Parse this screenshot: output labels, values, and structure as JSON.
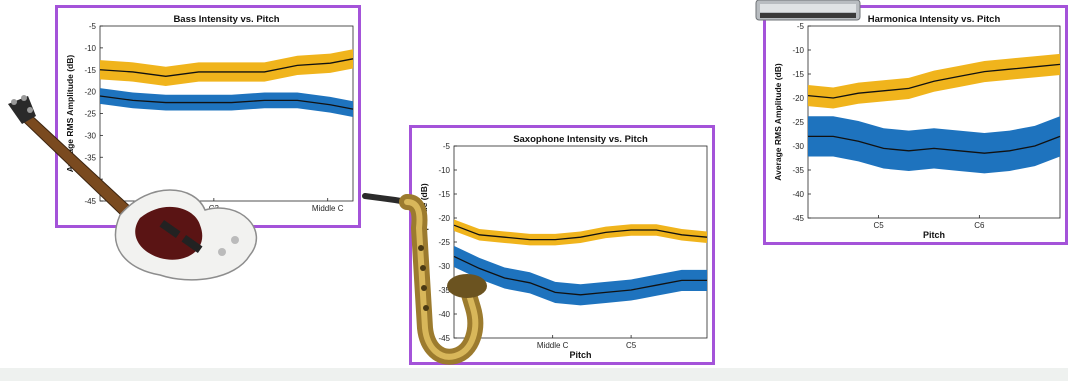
{
  "colors": {
    "frame": "#a453d9",
    "upper_band": "#f0b41c",
    "lower_band": "#1e73be",
    "mean_line": "#111111"
  },
  "chart_data": [
    {
      "id": "bass",
      "type": "area",
      "title": "Bass Intensity vs. Pitch",
      "xlabel": "",
      "ylabel": "Average RMS Amplitude (dB)",
      "ylim": [
        -45,
        -5
      ],
      "yticks": [
        -5,
        -10,
        -15,
        -20,
        -25,
        -30,
        -35,
        -40,
        -45
      ],
      "xlim": [
        0,
        10
      ],
      "xticks": [
        {
          "x": 4.5,
          "label": "C3"
        },
        {
          "x": 9,
          "label": "Middle C"
        }
      ],
      "x": [
        0,
        1.3,
        2.6,
        3.9,
        5.2,
        6.5,
        7.8,
        9.1,
        10
      ],
      "series": [
        {
          "color": "upper_band",
          "mean": [
            -15,
            -15.5,
            -16.5,
            -15.5,
            -15.5,
            -15.5,
            -14,
            -13.5,
            -12.5
          ],
          "spread": 2.2
        },
        {
          "color": "lower_band",
          "mean": [
            -21,
            -22,
            -22.5,
            -22.5,
            -22.5,
            -22,
            -22,
            -23,
            -24
          ],
          "spread": 1.8
        }
      ]
    },
    {
      "id": "sax",
      "type": "area",
      "title": "Saxophone Intensity vs. Pitch",
      "xlabel": "Pitch",
      "ylabel": "Average RMS Amplitude (dB)",
      "ylim": [
        -45,
        -5
      ],
      "yticks": [
        -5,
        -10,
        -15,
        -20,
        -25,
        -30,
        -35,
        -40,
        -45
      ],
      "xlim": [
        0,
        10
      ],
      "xticks": [
        {
          "x": 3.9,
          "label": "Middle C"
        },
        {
          "x": 7,
          "label": "C5"
        }
      ],
      "x": [
        0,
        1,
        2,
        3,
        4,
        5,
        6,
        7,
        8,
        9,
        10
      ],
      "series": [
        {
          "color": "upper_band",
          "mean": [
            -21.5,
            -23.5,
            -24,
            -24.5,
            -24.5,
            -24,
            -23,
            -22.5,
            -22.5,
            -23.5,
            -24
          ],
          "spread": 1.2
        },
        {
          "color": "lower_band",
          "mean": [
            -28,
            -30.5,
            -32.5,
            -33.5,
            -35.5,
            -36,
            -35.5,
            -35,
            -34,
            -33,
            -33
          ],
          "spread": 2.2
        }
      ]
    },
    {
      "id": "harmonica",
      "type": "area",
      "title": "Harmonica Intensity vs. Pitch",
      "xlabel": "Pitch",
      "ylabel": "Average RMS Amplitude (dB)",
      "ylim": [
        -45,
        -5
      ],
      "yticks": [
        -5,
        -10,
        -15,
        -20,
        -25,
        -30,
        -35,
        -40,
        -45
      ],
      "xlim": [
        0,
        10
      ],
      "xticks": [
        {
          "x": 2.8,
          "label": "C5"
        },
        {
          "x": 6.8,
          "label": "C6"
        }
      ],
      "x": [
        0,
        1,
        2,
        3,
        4,
        5,
        6,
        7,
        8,
        9,
        10
      ],
      "series": [
        {
          "color": "upper_band",
          "mean": [
            -19.5,
            -20,
            -19,
            -18.5,
            -18,
            -16.5,
            -15.5,
            -14.5,
            -14,
            -13.5,
            -13
          ],
          "spread": 2.2
        },
        {
          "color": "lower_band",
          "mean": [
            -28,
            -28,
            -29,
            -30.5,
            -31,
            -30.5,
            -31,
            -31.5,
            -31,
            -30,
            -28
          ],
          "spread": 4.2
        }
      ]
    }
  ],
  "decorations": [
    "bass-guitar-image",
    "saxophone-image",
    "harmonica-image"
  ]
}
